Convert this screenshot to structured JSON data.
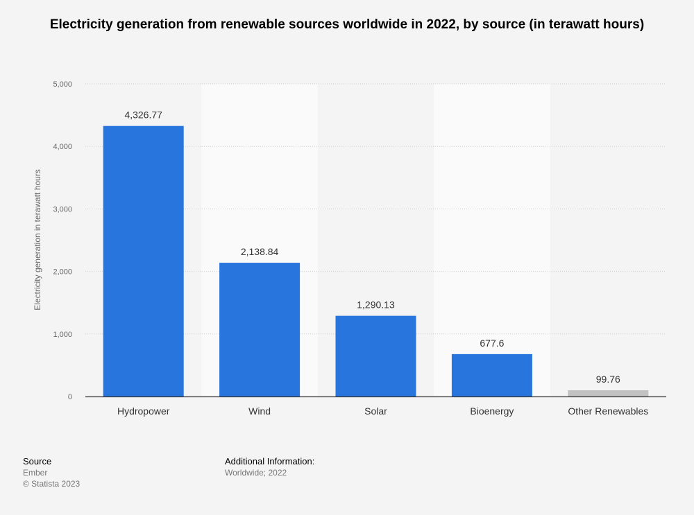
{
  "chart_data": {
    "type": "bar",
    "title": "Electricity generation from renewable sources worldwide in 2022, by source (in terawatt hours)",
    "ylabel": "Electricity generation in terawatt hours",
    "xlabel": "",
    "categories": [
      "Hydropower",
      "Wind",
      "Solar",
      "Bioenergy",
      "Other Renewables"
    ],
    "values": [
      4326.77,
      2138.84,
      1290.13,
      677.6,
      99.76
    ],
    "value_labels": [
      "4,326.77",
      "2,138.84",
      "1,290.13",
      "677.6",
      "99.76"
    ],
    "ylim": [
      0,
      5000
    ],
    "yticks": [
      0,
      1000,
      2000,
      3000,
      4000,
      5000
    ],
    "ytick_labels": [
      "0",
      "1,000",
      "2,000",
      "3,000",
      "4,000",
      "5,000"
    ],
    "grid": true,
    "colors": {
      "bar": "#2876dd",
      "bar_highlight_other": "#c2c2c2",
      "band": "#fafafa",
      "gridline": "#cccccc",
      "axis": "#333333"
    }
  },
  "footer": {
    "source_heading": "Source",
    "source_lines": [
      "Ember",
      "© Statista 2023"
    ],
    "info_heading": "Additional Information:",
    "info_lines": [
      "Worldwide; 2022"
    ]
  }
}
